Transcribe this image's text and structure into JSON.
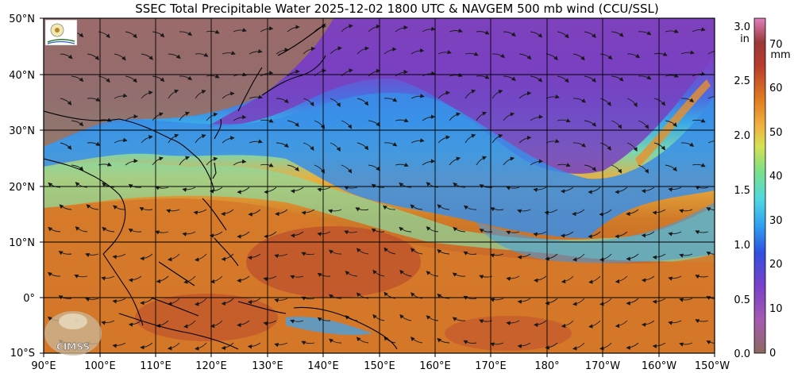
{
  "map": {
    "title": "SSEC Total Precipitable Water  2025-12-02 1800 UTC & NAVGEM 500 mb wind (CCU/SSL)",
    "lat_labels": [
      "50°N",
      "40°N",
      "30°N",
      "20°N",
      "10°N",
      "0°",
      "10°S"
    ],
    "lon_labels": [
      "90°E",
      "100°E",
      "110°E",
      "120°E",
      "130°E",
      "140°E",
      "150°E",
      "160°E",
      "170°E",
      "180°",
      "170°W",
      "160°W",
      "150°W"
    ],
    "logo_text": "CIMSS",
    "colors": {
      "frame": "#000000",
      "gridline": "#000000",
      "coastline": "#000000",
      "wind_arrow": "#1a1a1a"
    }
  },
  "colorbar": {
    "unit_in": "in",
    "unit_mm": "mm",
    "in_ticks": [
      "3.0",
      "2.5",
      "2.0",
      "1.5",
      "1.0",
      "0.5",
      "0.0"
    ],
    "mm_ticks": [
      "70",
      "60",
      "50",
      "40",
      "30",
      "20",
      "10",
      "0"
    ],
    "range_mm": [
      0,
      76
    ],
    "colors": [
      "#8c6a5e",
      "#9c3fb0",
      "#5b4fc8",
      "#2f7fe8",
      "#3fb0ee",
      "#6fd8a8",
      "#b8e070",
      "#f0c040",
      "#e8902a",
      "#c85a1e",
      "#b83b2e",
      "#d070b0"
    ]
  }
}
